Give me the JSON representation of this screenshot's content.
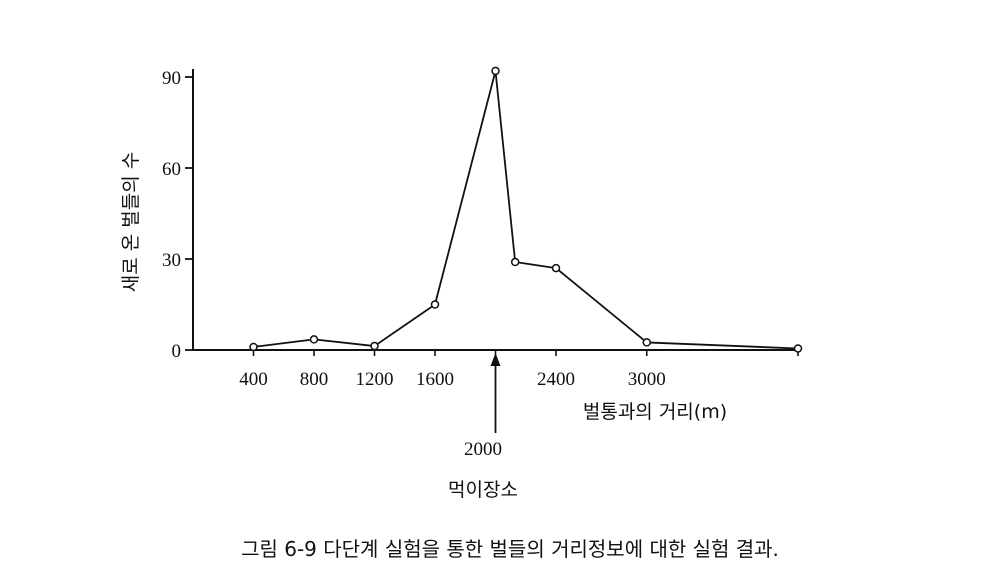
{
  "chart_data": {
    "type": "line",
    "ylabel": "새로 온 벌들의 수",
    "xlabel": "벌통과의 거리(m)",
    "caption": "그림 6-9  다단계 실험을 통한 벌들의 거리정보에 대한 실험 결과.",
    "yticks": [
      0,
      30,
      60,
      90
    ],
    "xticks": [
      "400",
      "800",
      "1200",
      "1600",
      "2400",
      "3000"
    ],
    "xlim": [
      0,
      4000
    ],
    "ylim": [
      0,
      90
    ],
    "feeding_site": {
      "x": 2000,
      "label_value": "2000",
      "label_text": "먹이장소"
    },
    "series": [
      {
        "x": [
          400,
          800,
          1200,
          1600,
          2000,
          2130,
          2400,
          3000,
          4000
        ],
        "y": [
          1,
          3.5,
          1.3,
          15,
          92,
          29,
          27,
          2.5,
          0.5
        ]
      }
    ],
    "grid": false
  }
}
